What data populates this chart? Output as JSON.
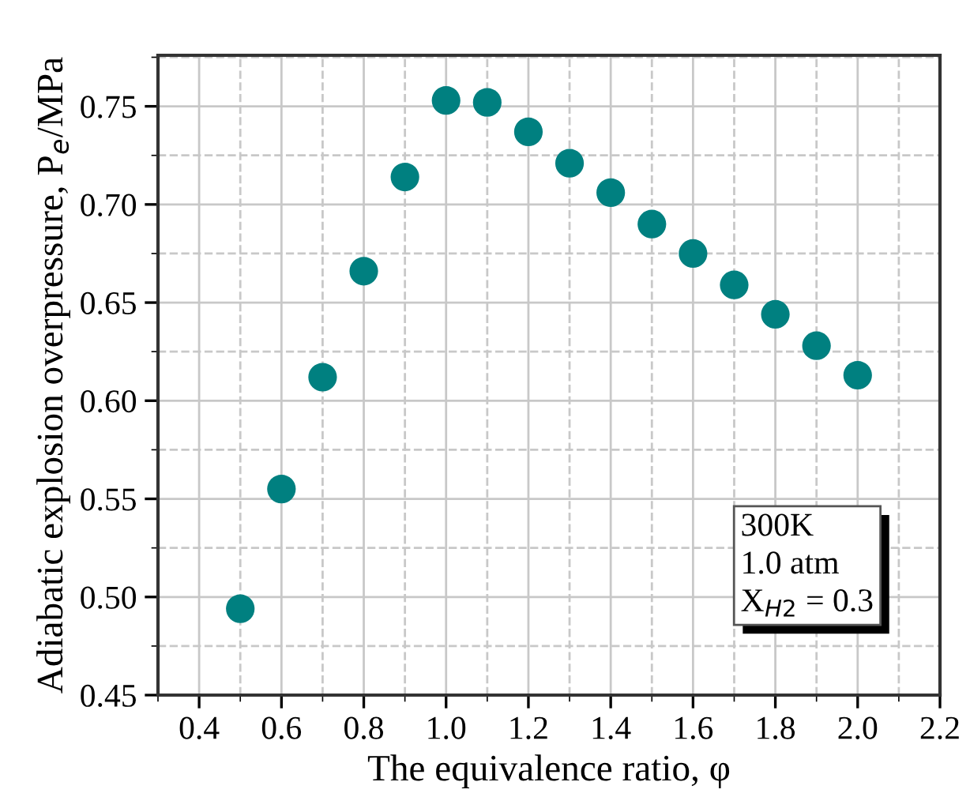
{
  "chart_data": {
    "type": "scatter",
    "xlabel": "The equivalence ratio, φ",
    "ylabel": "Adiabatic explosion overpressure, P$_{e}$/MPa",
    "x": [
      0.5,
      0.6,
      0.7,
      0.8,
      0.9,
      1.0,
      1.1,
      1.2,
      1.3,
      1.4,
      1.5,
      1.6,
      1.7,
      1.8,
      1.9,
      2.0
    ],
    "series": [
      {
        "color": "#008080",
        "values": [
          0.494,
          0.555,
          0.612,
          0.666,
          0.714,
          0.753,
          0.752,
          0.737,
          0.721,
          0.706,
          0.69,
          0.675,
          0.659,
          0.644,
          0.628,
          0.613
        ]
      }
    ],
    "marker": "circle",
    "xlim": [
      0.3,
      2.2
    ],
    "xticks": [
      {
        "value": 0.4,
        "label": "0.4"
      },
      {
        "value": 0.6,
        "label": "0.6"
      },
      {
        "value": 0.8,
        "label": "0.8"
      },
      {
        "value": 1.0,
        "label": "1.0"
      },
      {
        "value": 1.2,
        "label": "1.2"
      },
      {
        "value": 1.4,
        "label": "1.4"
      },
      {
        "value": 1.6,
        "label": "1.6"
      },
      {
        "value": 1.8,
        "label": "1.8"
      },
      {
        "value": 2.0,
        "label": "2.0"
      },
      {
        "value": 2.2,
        "label": "2.2"
      }
    ],
    "ylim": [
      0.45,
      0.776
    ],
    "yticks": [
      {
        "value": 0.45,
        "label": "0.45"
      },
      {
        "value": 0.5,
        "label": "0.50"
      },
      {
        "value": 0.55,
        "label": "0.55"
      },
      {
        "value": 0.6,
        "label": "0.60"
      },
      {
        "value": 0.65,
        "label": "0.65"
      },
      {
        "value": 0.7,
        "label": "0.70"
      },
      {
        "value": 0.75,
        "label": "0.75"
      }
    ],
    "grid": true,
    "annotations": [
      "300K\n1.0 atm\nX$_{H2}$ = 0.3"
    ]
  }
}
